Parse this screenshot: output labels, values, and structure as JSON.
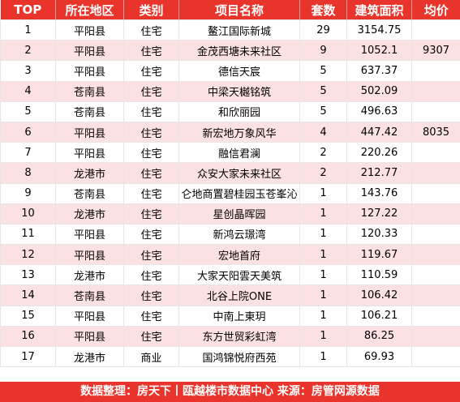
{
  "headers": [
    "TOP",
    "所在地区",
    "类别",
    "项目名称",
    "套数",
    "建筑面积",
    "均价"
  ],
  "rows": [
    [
      "1",
      "平阳县",
      "住宅",
      "鳌江国际新城",
      "29",
      "3154.75",
      ""
    ],
    [
      "2",
      "平阳县",
      "住宅",
      "金茂西塘未来社区",
      "9",
      "1052.1",
      "9307"
    ],
    [
      "3",
      "平阳县",
      "住宅",
      "德信天宸",
      "5",
      "637.37",
      ""
    ],
    [
      "4",
      "苍南县",
      "住宅",
      "中梁天樾铭筑",
      "5",
      "502.09",
      ""
    ],
    [
      "5",
      "苍南县",
      "住宅",
      "和欣丽园",
      "5",
      "496.63",
      ""
    ],
    [
      "6",
      "平阳县",
      "住宅",
      "新宏地万象风华",
      "4",
      "447.42",
      "8035"
    ],
    [
      "7",
      "平阳县",
      "住宅",
      "融信君澜",
      "2",
      "220.26",
      ""
    ],
    [
      "8",
      "龙港市",
      "住宅",
      "众安大家未来社区",
      "2",
      "212.77",
      ""
    ],
    [
      "9",
      "苍南县",
      "住宅",
      "仑地商置碧桂园玉苍峯沁",
      "1",
      "143.76",
      ""
    ],
    [
      "10",
      "龙港市",
      "住宅",
      "星创晶晖园",
      "1",
      "127.22",
      ""
    ],
    [
      "11",
      "平阳县",
      "住宅",
      "新鸿云璟湾",
      "1",
      "120.33",
      ""
    ],
    [
      "12",
      "平阳县",
      "住宅",
      "宏地首府",
      "1",
      "119.67",
      ""
    ],
    [
      "13",
      "龙港市",
      "住宅",
      "大家天阳雲天美筑",
      "1",
      "110.59",
      ""
    ],
    [
      "14",
      "苍南县",
      "住宅",
      "北谷上院ONE",
      "1",
      "106.42",
      ""
    ],
    [
      "15",
      "平阳县",
      "住宅",
      "中南上東玥",
      "1",
      "106.21",
      ""
    ],
    [
      "16",
      "平阳县",
      "住宅",
      "东方世贸彩虹湾",
      "1",
      "86.25",
      ""
    ],
    [
      "17",
      "龙港市",
      "商业",
      "国鸿锦悦府西苑",
      "1",
      "69.93",
      ""
    ]
  ],
  "footer": "数据整理：房天下丨瓯越楼市数据中心  来源：房管网源数据",
  "colors": {
    "header_red": "#e8342b",
    "row_pink": "#fbe1e1",
    "row_white": "#ffffff"
  }
}
